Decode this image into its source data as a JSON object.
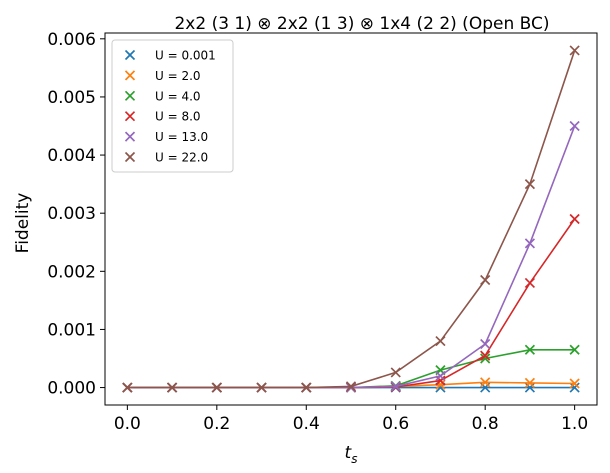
{
  "chart_data": {
    "type": "line",
    "title": "2x2 (3 1) ⊗ 2x2 (1 3) ⊗ 1x4 (2 2) (Open BC)",
    "xlabel": "t",
    "xlabel_subscript": "s",
    "ylabel": "Fidelity",
    "xlim": [
      -0.05,
      1.05
    ],
    "ylim": [
      -0.0003,
      0.0061
    ],
    "x_ticks": [
      0.0,
      0.2,
      0.4,
      0.6,
      0.8,
      1.0
    ],
    "x_tick_labels": [
      "0.0",
      "0.2",
      "0.4",
      "0.6",
      "0.8",
      "1.0"
    ],
    "y_ticks": [
      0.0,
      0.001,
      0.002,
      0.003,
      0.004,
      0.005,
      0.006
    ],
    "y_tick_labels": [
      "0.000",
      "0.001",
      "0.002",
      "0.003",
      "0.004",
      "0.005",
      "0.006"
    ],
    "grid": false,
    "legend_position": "top-left",
    "marker": "x",
    "x": [
      0.0,
      0.1,
      0.2,
      0.3,
      0.4,
      0.5,
      0.6,
      0.7,
      0.8,
      0.9,
      1.0
    ],
    "series": [
      {
        "name": "U = 0.001",
        "color": "#1f77b4",
        "values": [
          0,
          0,
          0,
          0,
          0,
          0,
          0,
          0,
          0,
          0,
          0
        ]
      },
      {
        "name": "U = 2.0",
        "color": "#ff7f0e",
        "values": [
          0,
          0,
          0,
          0,
          0,
          0,
          2e-05,
          5e-05,
          9e-05,
          8e-05,
          7e-05
        ]
      },
      {
        "name": "U = 4.0",
        "color": "#2ca02c",
        "values": [
          0,
          0,
          0,
          0,
          0,
          0,
          3e-05,
          0.0003,
          0.0005,
          0.00065,
          0.00065
        ]
      },
      {
        "name": "U = 8.0",
        "color": "#d62728",
        "values": [
          0,
          0,
          0,
          0,
          0,
          0,
          1e-05,
          0.00012,
          0.00055,
          0.0018,
          0.0029
        ]
      },
      {
        "name": "U = 13.0",
        "color": "#9467bd",
        "values": [
          0,
          0,
          0,
          0,
          0,
          0,
          2e-05,
          0.0002,
          0.00075,
          0.00248,
          0.0045
        ]
      },
      {
        "name": "U = 22.0",
        "color": "#8c564b",
        "values": [
          0,
          0,
          0,
          0,
          0,
          2e-05,
          0.00026,
          0.0008,
          0.00185,
          0.0035,
          0.0058
        ]
      }
    ]
  }
}
